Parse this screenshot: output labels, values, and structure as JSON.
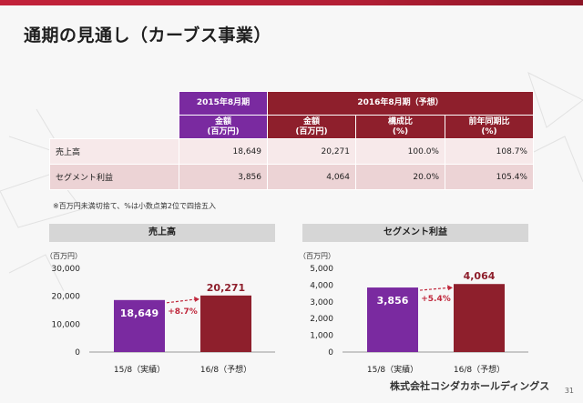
{
  "title": "通期の見通し（カーブス事業）",
  "table": {
    "header_2015": "2015年8月期",
    "header_2016": "2016年8月期（予想）",
    "subheaders": [
      "金額\n(百万円)",
      "金額\n(百万円)",
      "構成比\n(%)",
      "前年同期比\n(%)"
    ],
    "rows": [
      {
        "label": "売上高",
        "values": [
          "18,649",
          "20,271",
          "100.0%",
          "108.7%"
        ]
      },
      {
        "label": "セグメント利益",
        "values": [
          "3,856",
          "4,064",
          "20.0%",
          "105.4%"
        ]
      }
    ]
  },
  "note": "※百万円未満切捨て、%は小数点第2位で四捨五入",
  "colors": {
    "accent_2015": "#7a2aa0",
    "accent_2016": "#8e1f2c",
    "arrow": "#c0283c"
  },
  "chart_data": [
    {
      "type": "bar",
      "title": "売上高",
      "ylabel": "（百万円）",
      "ylim": [
        0,
        30000
      ],
      "yticks": [
        "0",
        "10,000",
        "20,000",
        "30,000"
      ],
      "categories": [
        "15/8（実績）",
        "16/8（予想）"
      ],
      "values": [
        18649,
        20271
      ],
      "value_labels": [
        "18,649",
        "20,271"
      ],
      "change_label": "+8.7%"
    },
    {
      "type": "bar",
      "title": "セグメント利益",
      "ylabel": "（百万円）",
      "ylim": [
        0,
        5000
      ],
      "yticks": [
        "0",
        "1,000",
        "2,000",
        "3,000",
        "4,000",
        "5,000"
      ],
      "categories": [
        "15/8（実績）",
        "16/8（予想）"
      ],
      "values": [
        3856,
        4064
      ],
      "value_labels": [
        "3,856",
        "4,064"
      ],
      "change_label": "+5.4%"
    }
  ],
  "footer": {
    "company": "株式会社コシダカホールディングス",
    "page": "31"
  }
}
